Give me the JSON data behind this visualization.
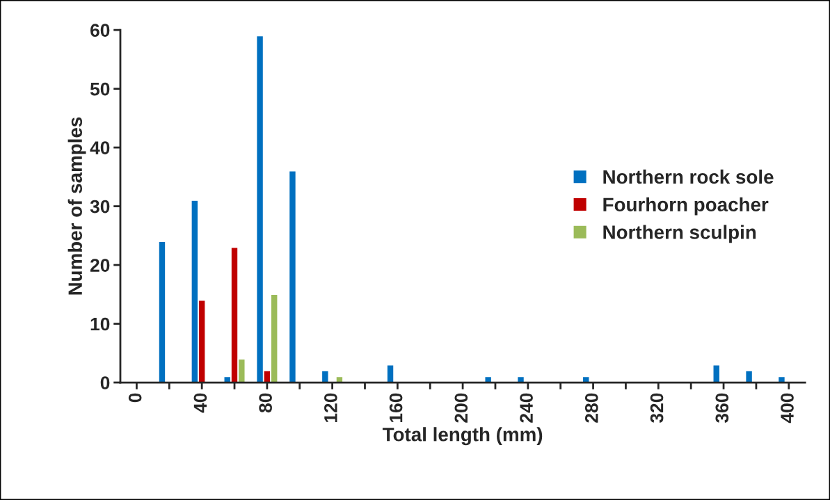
{
  "chart_data": {
    "type": "bar",
    "xlabel": "Total length (mm)",
    "ylabel": "Number of samples",
    "categories": [
      "0",
      null,
      "40",
      null,
      "80",
      null,
      "120",
      null,
      "160",
      null,
      "200",
      null,
      "240",
      null,
      "280",
      null,
      "320",
      null,
      "360",
      null,
      "400"
    ],
    "series": [
      {
        "name": "Northern rock sole",
        "color": "#0070c0",
        "values": [
          null,
          24,
          31,
          1,
          59,
          36,
          2,
          null,
          3,
          null,
          null,
          1,
          1,
          null,
          1,
          null,
          null,
          null,
          3,
          2,
          1
        ]
      },
      {
        "name": "Fourhorn poacher",
        "color": "#c00000",
        "values": [
          null,
          null,
          14,
          23,
          2,
          null,
          null,
          null,
          null,
          null,
          null,
          null,
          null,
          null,
          null,
          null,
          null,
          null,
          null,
          null,
          null
        ]
      },
      {
        "name": "Northern sculpin",
        "color": "#9bbb59",
        "values": [
          null,
          null,
          null,
          4,
          15,
          null,
          1,
          null,
          null,
          null,
          null,
          null,
          null,
          null,
          null,
          null,
          null,
          null,
          null,
          null,
          null
        ]
      }
    ],
    "ylim": [
      0,
      60
    ],
    "yticks": [
      0,
      10,
      20,
      30,
      40,
      50,
      60
    ],
    "grid": false,
    "legend": "right"
  }
}
